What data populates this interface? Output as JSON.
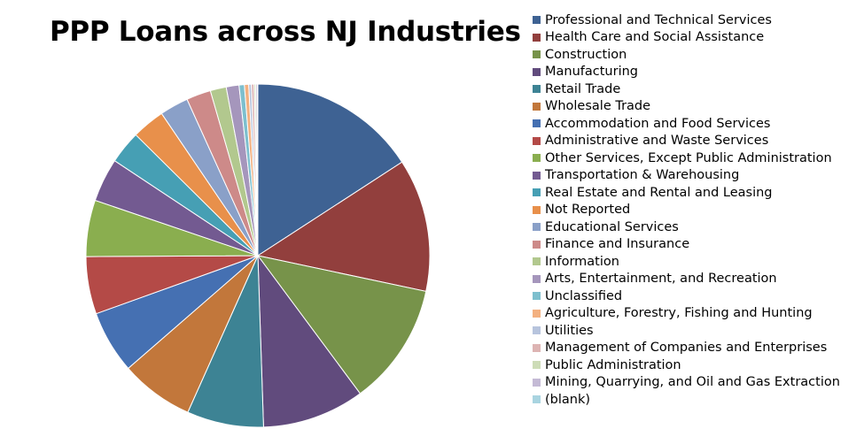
{
  "chart_data": {
    "type": "pie",
    "title": "PPP Loans across NJ Industries",
    "legend_position": "right",
    "slices": [
      {
        "label": "Professional and Technical Services",
        "value": 15.8,
        "color": "#3E6293"
      },
      {
        "label": "Health Care and Social Assistance",
        "value": 12.5,
        "color": "#923F3D"
      },
      {
        "label": "Construction",
        "value": 11.5,
        "color": "#77934A"
      },
      {
        "label": "Manufacturing",
        "value": 9.6,
        "color": "#614B7D"
      },
      {
        "label": "Retail Trade",
        "value": 7.2,
        "color": "#3D8394"
      },
      {
        "label": "Wholesale Trade",
        "value": 6.9,
        "color": "#C2773B"
      },
      {
        "label": "Accommodation and Food Services",
        "value": 5.9,
        "color": "#4570B2"
      },
      {
        "label": "Administrative and Waste Services",
        "value": 5.4,
        "color": "#B44A47"
      },
      {
        "label": "Other Services, Except Public Administration",
        "value": 5.3,
        "color": "#8AAE4F"
      },
      {
        "label": "Transportation & Warehousing",
        "value": 4.1,
        "color": "#735A91"
      },
      {
        "label": "Real Estate and Rental and Leasing",
        "value": 3.1,
        "color": "#469FB4"
      },
      {
        "label": "Not Reported",
        "value": 3.1,
        "color": "#E8904B"
      },
      {
        "label": "Educational Services",
        "value": 2.7,
        "color": "#8AA0C8"
      },
      {
        "label": "Finance and Insurance",
        "value": 2.3,
        "color": "#CD8A89"
      },
      {
        "label": "Information",
        "value": 1.5,
        "color": "#B2C88E"
      },
      {
        "label": "Arts, Entertainment, and Recreation",
        "value": 1.2,
        "color": "#A596BC"
      },
      {
        "label": "Unclassified",
        "value": 0.5,
        "color": "#7DBFCE"
      },
      {
        "label": "Agriculture, Forestry, Fishing and Hunting",
        "value": 0.4,
        "color": "#F3B080"
      },
      {
        "label": "Utilities",
        "value": 0.25,
        "color": "#B7C4DD"
      },
      {
        "label": "Management of Companies and Enterprises",
        "value": 0.25,
        "color": "#DDB4B3"
      },
      {
        "label": "Public Administration",
        "value": 0.15,
        "color": "#CDDCB7"
      },
      {
        "label": "Mining, Quarrying, and Oil and Gas Extraction",
        "value": 0.15,
        "color": "#C4BAD5"
      },
      {
        "label": "(blank)",
        "value": 0.05,
        "color": "#A9D4E0"
      }
    ]
  }
}
